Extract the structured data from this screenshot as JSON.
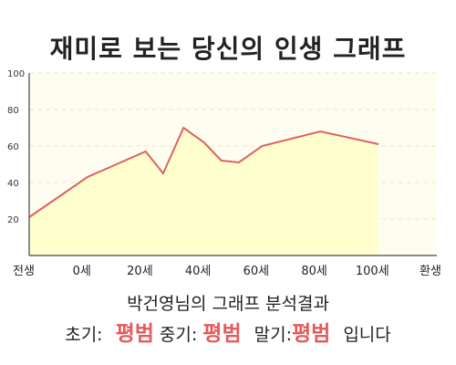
{
  "chart_data": {
    "type": "area",
    "title": "재미로 보는 당신의 인생 그래프",
    "x_tick_labels": [
      "전생",
      "0세",
      "20세",
      "40세",
      "60세",
      "80세",
      "100세",
      "환생"
    ],
    "x": [
      -20,
      0,
      10,
      20,
      26,
      33,
      40,
      46,
      52,
      60,
      80,
      100
    ],
    "values": [
      21,
      43,
      50,
      57,
      45,
      70,
      62,
      52,
      51,
      60,
      68,
      61
    ],
    "ylim": [
      0,
      100
    ],
    "y_ticks": [
      20,
      40,
      60,
      80,
      100
    ],
    "grid": true,
    "colors": {
      "line": "#e06060",
      "fill": "#ffffc8",
      "plot_bg": "#fefef0",
      "grid": "#e6e6c8"
    }
  },
  "result": {
    "title": "박건영님의 그래프 분석결과",
    "early_label": "초기:",
    "early_value": "평범",
    "mid_label": "중기:",
    "mid_value": "평범",
    "late_label": "말기:",
    "late_value": "평범",
    "suffix": "입니다"
  }
}
